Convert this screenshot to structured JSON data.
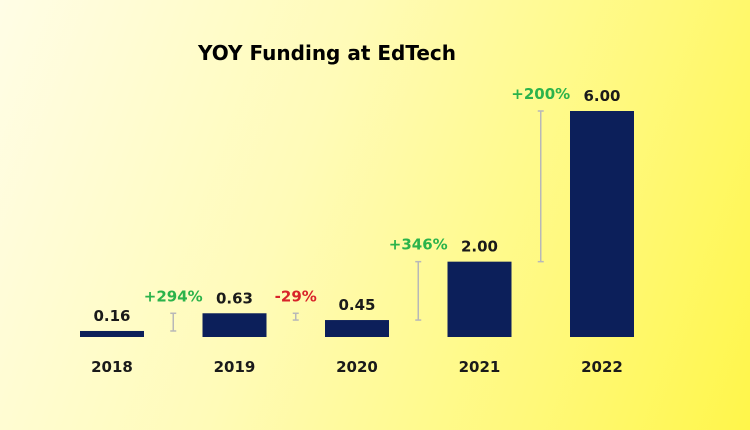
{
  "chart_data": {
    "type": "bar",
    "title": "YOY Funding at EdTech",
    "categories": [
      "2018",
      "2019",
      "2020",
      "2021",
      "2022"
    ],
    "values": [
      0.16,
      0.63,
      0.45,
      2.0,
      6.0
    ],
    "value_labels": [
      "0.16",
      "0.63",
      "0.45",
      "2.00",
      "6.00"
    ],
    "changes": [
      "+294%",
      "-29%",
      "+346%",
      "+200%"
    ],
    "ylim": [
      0,
      6.0
    ],
    "grid": false,
    "legend": "none"
  },
  "colors": {
    "bar": "#0c1f5a",
    "title": "#0c1f5a",
    "label": "#1a1a1a",
    "positive": "#2bb34b",
    "negative": "#d8232a",
    "connector": "#b8b8b8"
  }
}
